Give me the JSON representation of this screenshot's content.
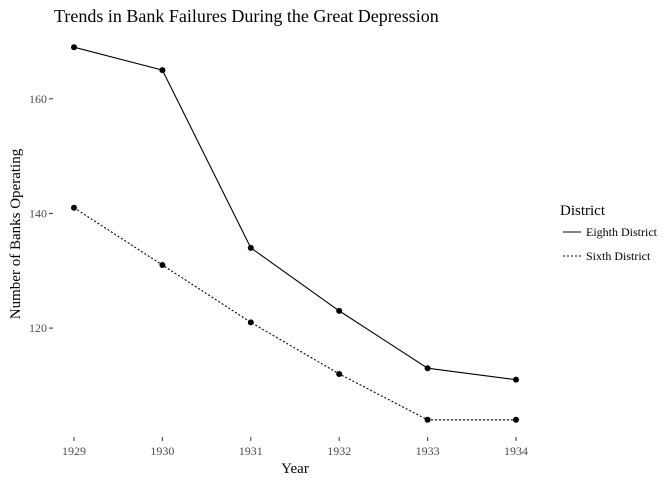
{
  "chart_data": {
    "type": "line",
    "title": "Trends in Bank Failures During the Great Depression",
    "xlabel": "Year",
    "ylabel": "Number of Banks Operating",
    "x": [
      1929,
      1930,
      1931,
      1932,
      1933,
      1934
    ],
    "ylim": [
      101,
      172
    ],
    "yticks": [
      120,
      140,
      160
    ],
    "grid": false,
    "legend": {
      "title": "District",
      "position": "right"
    },
    "series": [
      {
        "name": "Eighth District",
        "line_style": "solid",
        "values": [
          169,
          165,
          134,
          123,
          113,
          111
        ]
      },
      {
        "name": "Sixth District",
        "line_style": "dotted",
        "values": [
          141,
          131,
          121,
          112,
          104,
          104
        ]
      }
    ]
  }
}
